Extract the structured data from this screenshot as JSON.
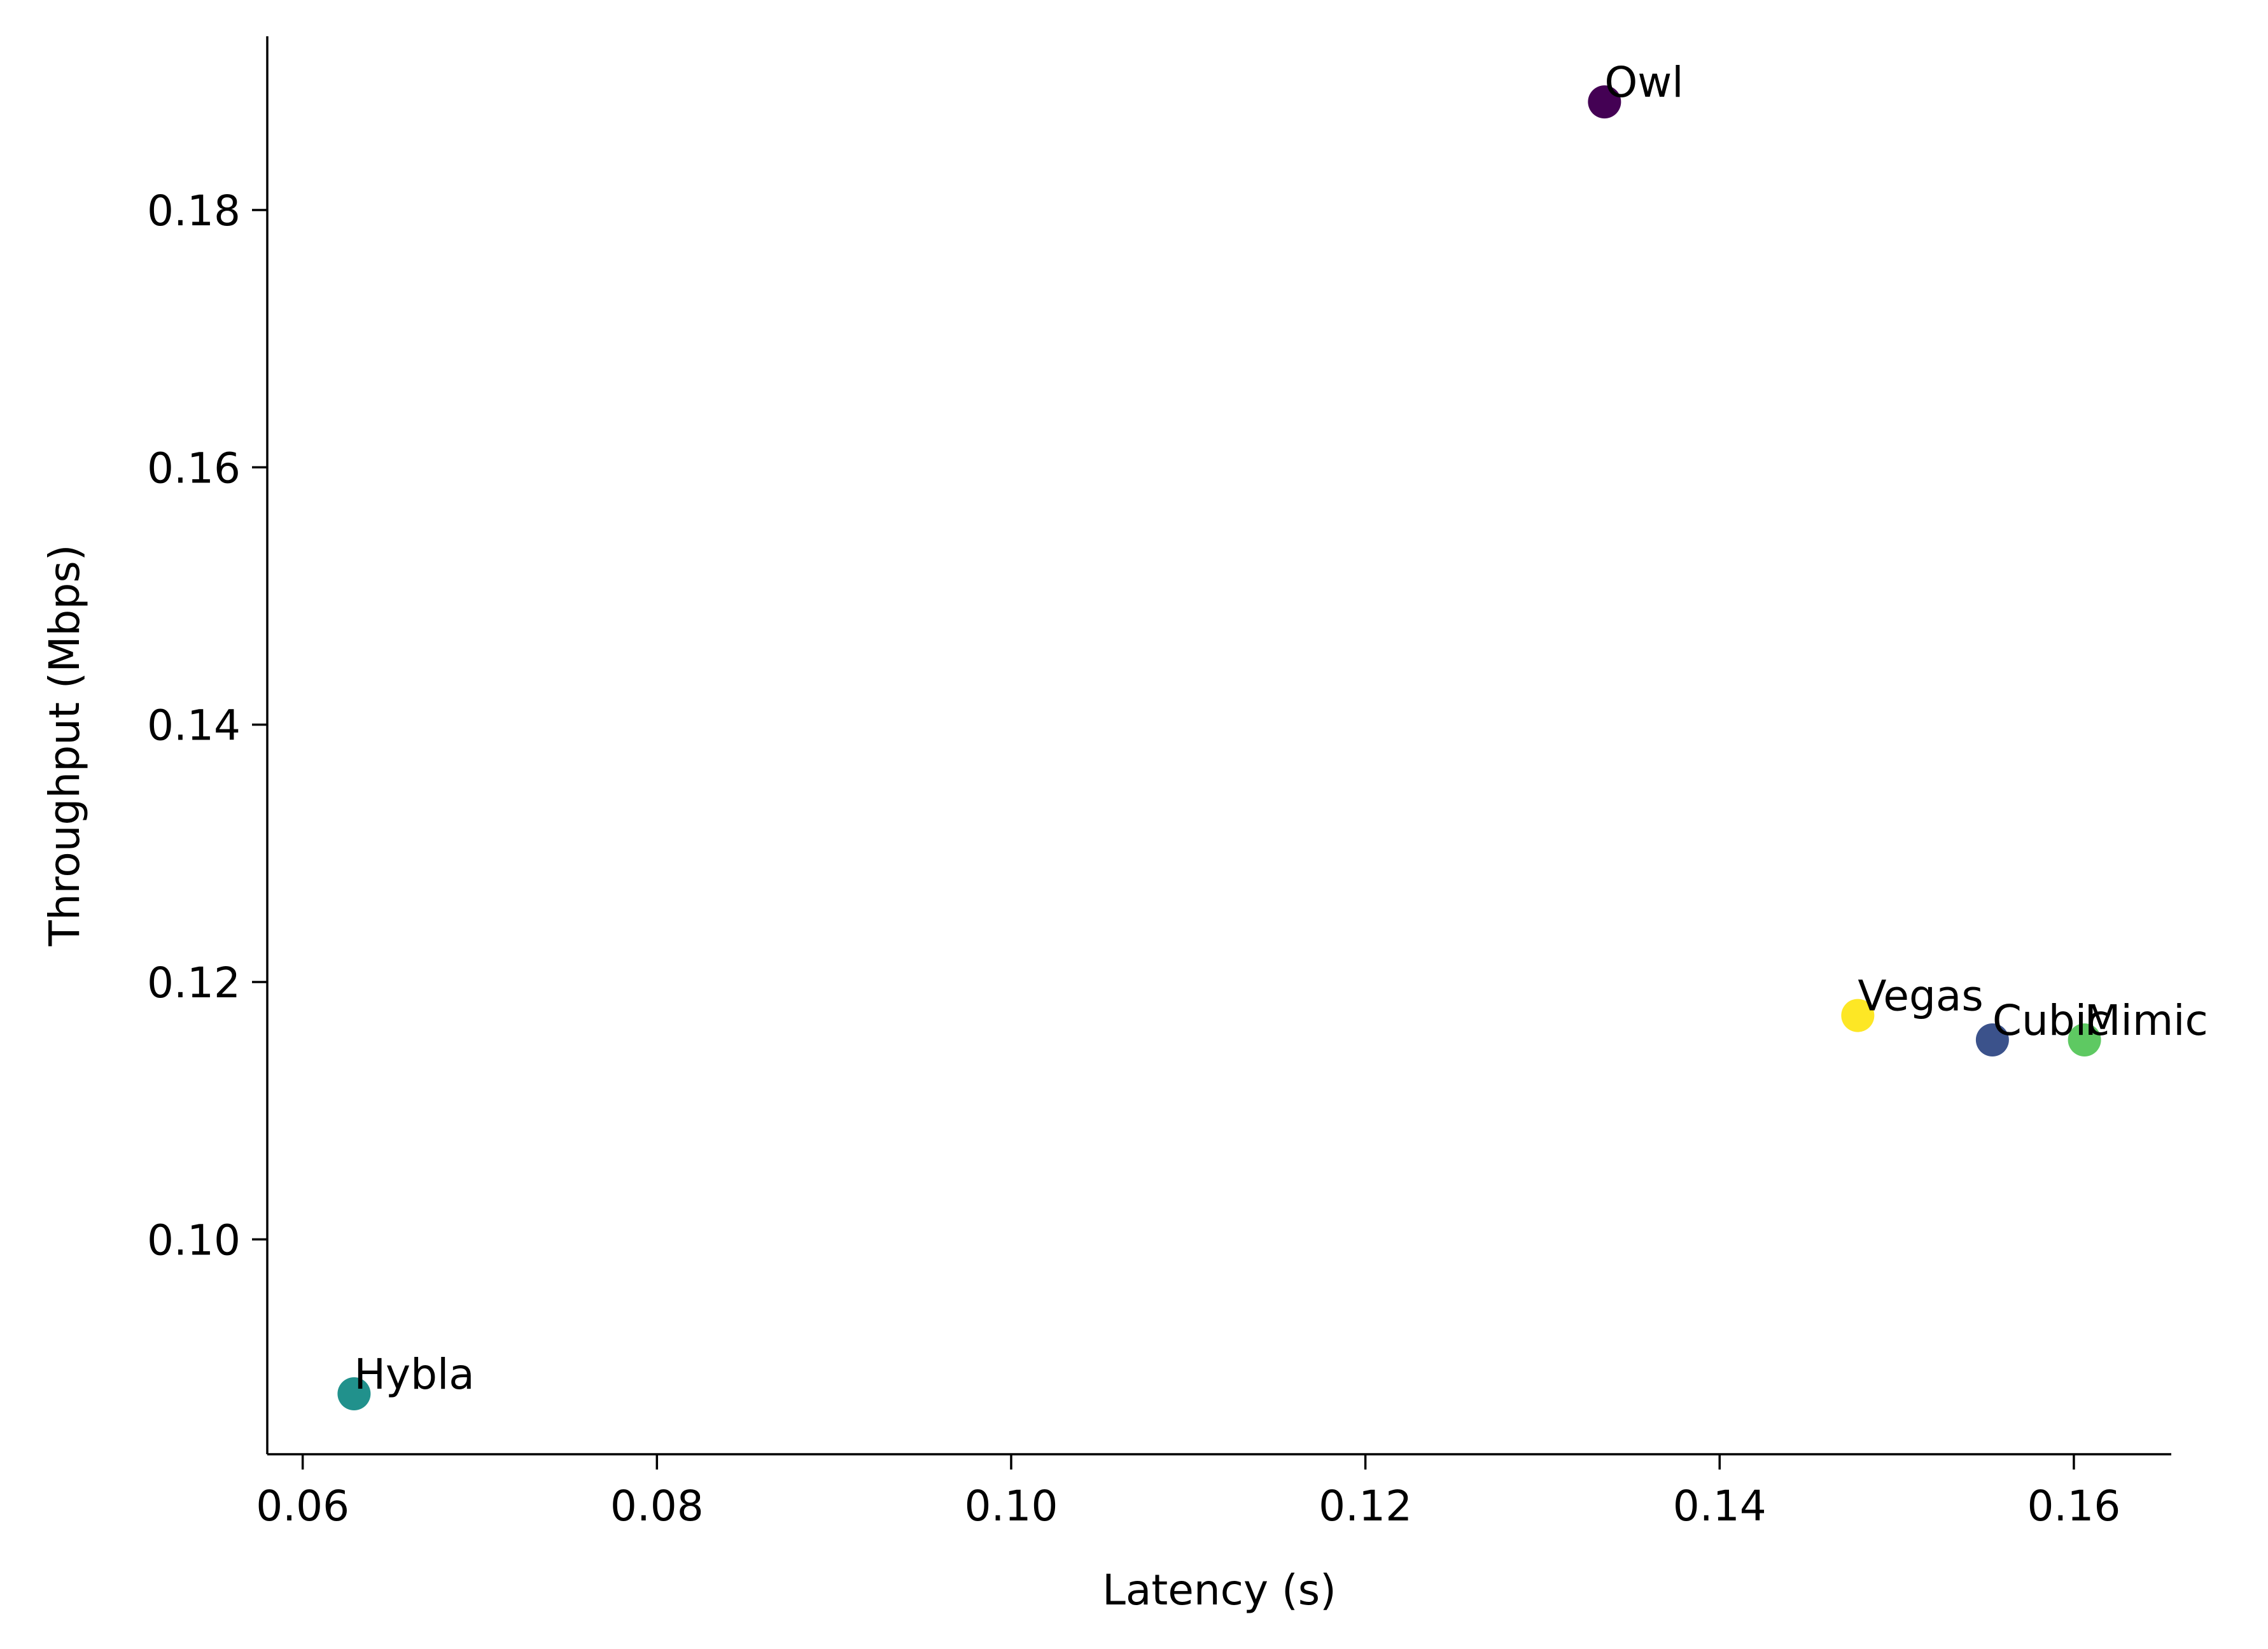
{
  "chart_data": {
    "type": "scatter",
    "title": "",
    "xlabel": "Latency (s)",
    "ylabel": "Throughput (Mbps)",
    "xlim": [
      0.058,
      0.1655
    ],
    "ylim": [
      0.0833,
      0.1935
    ],
    "xticks": [
      0.06,
      0.08,
      0.1,
      0.12,
      0.14,
      0.16
    ],
    "xtick_labels": [
      "0.06",
      "0.08",
      "0.10",
      "0.12",
      "0.14",
      "0.16"
    ],
    "yticks": [
      0.1,
      0.12,
      0.14,
      0.16,
      0.18
    ],
    "ytick_labels": [
      "0.10",
      "0.12",
      "0.14",
      "0.16",
      "0.18"
    ],
    "grid": false,
    "legend": "none",
    "spines": "left-bottom",
    "points": [
      {
        "label": "Owl",
        "x": 0.1335,
        "y": 0.1884,
        "color": "#440154"
      },
      {
        "label": "Cubic",
        "x": 0.1554,
        "y": 0.1155,
        "color": "#3b528b"
      },
      {
        "label": "Hybla",
        "x": 0.0629,
        "y": 0.088,
        "color": "#21918c"
      },
      {
        "label": "Mimic",
        "x": 0.1606,
        "y": 0.1155,
        "color": "#5ec962"
      },
      {
        "label": "Vegas",
        "x": 0.1478,
        "y": 0.1174,
        "color": "#fde725"
      }
    ]
  }
}
